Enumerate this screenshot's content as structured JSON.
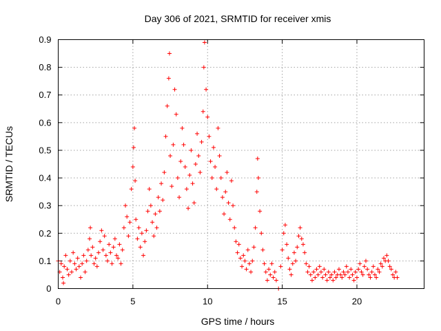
{
  "chart_data": {
    "type": "scatter",
    "title": "Day 306 of 2021, SRMTID for receiver xmis",
    "xlabel": "GPS time / hours",
    "ylabel": "SRMTID / TECUs",
    "xlim": [
      0,
      24.5
    ],
    "ylim": [
      0,
      0.9
    ],
    "xticks": [
      0,
      5,
      10,
      15,
      20
    ],
    "xtick_labels": [
      "0",
      "5",
      "10",
      "15",
      "20"
    ],
    "yticks": [
      0,
      0.1,
      0.2,
      0.3,
      0.4,
      0.5,
      0.6,
      0.7,
      0.8,
      0.9
    ],
    "ytick_labels": [
      "0",
      "0.1",
      "0.2",
      "0.3",
      "0.4",
      "0.5",
      "0.6",
      "0.7",
      "0.8",
      "0.9"
    ],
    "grid": true,
    "marker": "plus",
    "color": "#ff0000",
    "series": [
      {
        "name": "SRMTID",
        "points": [
          [
            0.0,
            0.1
          ],
          [
            0.1,
            0.06
          ],
          [
            0.2,
            0.09
          ],
          [
            0.3,
            0.04
          ],
          [
            0.35,
            0.02
          ],
          [
            0.4,
            0.08
          ],
          [
            0.5,
            0.12
          ],
          [
            0.6,
            0.07
          ],
          [
            0.7,
            0.05
          ],
          [
            0.8,
            0.1
          ],
          [
            0.9,
            0.06
          ],
          [
            1.0,
            0.13
          ],
          [
            1.1,
            0.09
          ],
          [
            1.2,
            0.07
          ],
          [
            1.3,
            0.11
          ],
          [
            1.4,
            0.08
          ],
          [
            1.5,
            0.04
          ],
          [
            1.6,
            0.09
          ],
          [
            1.7,
            0.12
          ],
          [
            1.8,
            0.06
          ],
          [
            1.9,
            0.1
          ],
          [
            2.0,
            0.14
          ],
          [
            2.1,
            0.18
          ],
          [
            2.15,
            0.22
          ],
          [
            2.2,
            0.12
          ],
          [
            2.3,
            0.15
          ],
          [
            2.4,
            0.09
          ],
          [
            2.5,
            0.11
          ],
          [
            2.6,
            0.08
          ],
          [
            2.7,
            0.13
          ],
          [
            2.8,
            0.17
          ],
          [
            2.9,
            0.21
          ],
          [
            3.0,
            0.14
          ],
          [
            3.1,
            0.19
          ],
          [
            3.2,
            0.12
          ],
          [
            3.3,
            0.1
          ],
          [
            3.4,
            0.16
          ],
          [
            3.5,
            0.13
          ],
          [
            3.6,
            0.09
          ],
          [
            3.7,
            0.15
          ],
          [
            3.8,
            0.18
          ],
          [
            3.9,
            0.12
          ],
          [
            4.0,
            0.11
          ],
          [
            4.1,
            0.16
          ],
          [
            4.2,
            0.09
          ],
          [
            4.3,
            0.14
          ],
          [
            4.4,
            0.22
          ],
          [
            4.5,
            0.3
          ],
          [
            4.6,
            0.26
          ],
          [
            4.7,
            0.19
          ],
          [
            4.8,
            0.24
          ],
          [
            4.9,
            0.36
          ],
          [
            5.0,
            0.44
          ],
          [
            5.05,
            0.51
          ],
          [
            5.1,
            0.58
          ],
          [
            5.15,
            0.39
          ],
          [
            5.2,
            0.25
          ],
          [
            5.3,
            0.18
          ],
          [
            5.4,
            0.22
          ],
          [
            5.5,
            0.15
          ],
          [
            5.6,
            0.2
          ],
          [
            5.7,
            0.12
          ],
          [
            5.8,
            0.17
          ],
          [
            5.9,
            0.21
          ],
          [
            6.0,
            0.28
          ],
          [
            6.1,
            0.36
          ],
          [
            6.2,
            0.3
          ],
          [
            6.3,
            0.24
          ],
          [
            6.4,
            0.19
          ],
          [
            6.5,
            0.27
          ],
          [
            6.6,
            0.22
          ],
          [
            6.7,
            0.33
          ],
          [
            6.8,
            0.28
          ],
          [
            6.9,
            0.38
          ],
          [
            7.0,
            0.32
          ],
          [
            7.1,
            0.42
          ],
          [
            7.2,
            0.55
          ],
          [
            7.3,
            0.66
          ],
          [
            7.4,
            0.76
          ],
          [
            7.45,
            0.85
          ],
          [
            7.5,
            0.48
          ],
          [
            7.6,
            0.37
          ],
          [
            7.7,
            0.52
          ],
          [
            7.8,
            0.72
          ],
          [
            7.9,
            0.63
          ],
          [
            8.0,
            0.4
          ],
          [
            8.1,
            0.33
          ],
          [
            8.2,
            0.46
          ],
          [
            8.3,
            0.58
          ],
          [
            8.4,
            0.52
          ],
          [
            8.5,
            0.44
          ],
          [
            8.6,
            0.36
          ],
          [
            8.7,
            0.29
          ],
          [
            8.8,
            0.41
          ],
          [
            8.9,
            0.5
          ],
          [
            9.0,
            0.38
          ],
          [
            9.1,
            0.31
          ],
          [
            9.2,
            0.45
          ],
          [
            9.3,
            0.56
          ],
          [
            9.4,
            0.48
          ],
          [
            9.5,
            0.42
          ],
          [
            9.6,
            0.53
          ],
          [
            9.7,
            0.64
          ],
          [
            9.75,
            0.8
          ],
          [
            9.8,
            0.89
          ],
          [
            9.9,
            0.72
          ],
          [
            10.0,
            0.62
          ],
          [
            10.1,
            0.55
          ],
          [
            10.2,
            0.46
          ],
          [
            10.3,
            0.4
          ],
          [
            10.4,
            0.51
          ],
          [
            10.5,
            0.44
          ],
          [
            10.6,
            0.36
          ],
          [
            10.7,
            0.58
          ],
          [
            10.8,
            0.48
          ],
          [
            10.9,
            0.4
          ],
          [
            11.0,
            0.33
          ],
          [
            11.1,
            0.27
          ],
          [
            11.2,
            0.35
          ],
          [
            11.3,
            0.42
          ],
          [
            11.4,
            0.31
          ],
          [
            11.5,
            0.25
          ],
          [
            11.6,
            0.39
          ],
          [
            11.7,
            0.3
          ],
          [
            11.8,
            0.22
          ],
          [
            11.9,
            0.17
          ],
          [
            12.0,
            0.13
          ],
          [
            12.1,
            0.16
          ],
          [
            12.2,
            0.11
          ],
          [
            12.3,
            0.08
          ],
          [
            12.4,
            0.12
          ],
          [
            12.5,
            0.1
          ],
          [
            12.6,
            0.07
          ],
          [
            12.7,
            0.14
          ],
          [
            12.8,
            0.09
          ],
          [
            12.9,
            0.06
          ],
          [
            13.0,
            0.1
          ],
          [
            13.1,
            0.15
          ],
          [
            13.2,
            0.22
          ],
          [
            13.3,
            0.35
          ],
          [
            13.35,
            0.47
          ],
          [
            13.4,
            0.4
          ],
          [
            13.5,
            0.28
          ],
          [
            13.6,
            0.2
          ],
          [
            13.7,
            0.14
          ],
          [
            13.8,
            0.09
          ],
          [
            13.9,
            0.06
          ],
          [
            14.0,
            0.03
          ],
          [
            14.1,
            0.07
          ],
          [
            14.2,
            0.05
          ],
          [
            14.3,
            0.09
          ],
          [
            14.4,
            0.04
          ],
          [
            14.5,
            0.06
          ],
          [
            14.6,
            0.03
          ],
          [
            14.75,
            0.0
          ],
          [
            14.9,
            0.08
          ],
          [
            15.0,
            0.14
          ],
          [
            15.1,
            0.2
          ],
          [
            15.2,
            0.23
          ],
          [
            15.3,
            0.16
          ],
          [
            15.4,
            0.11
          ],
          [
            15.5,
            0.07
          ],
          [
            15.6,
            0.05
          ],
          [
            15.7,
            0.09
          ],
          [
            15.8,
            0.13
          ],
          [
            15.9,
            0.1
          ],
          [
            16.0,
            0.15
          ],
          [
            16.1,
            0.19
          ],
          [
            16.2,
            0.22
          ],
          [
            16.3,
            0.18
          ],
          [
            16.4,
            0.16
          ],
          [
            16.5,
            0.13
          ],
          [
            16.6,
            0.09
          ],
          [
            16.7,
            0.06
          ],
          [
            16.8,
            0.08
          ],
          [
            16.9,
            0.05
          ],
          [
            17.0,
            0.03
          ],
          [
            17.1,
            0.06
          ],
          [
            17.2,
            0.04
          ],
          [
            17.3,
            0.07
          ],
          [
            17.4,
            0.05
          ],
          [
            17.5,
            0.08
          ],
          [
            17.6,
            0.06
          ],
          [
            17.7,
            0.04
          ],
          [
            17.8,
            0.07
          ],
          [
            17.9,
            0.05
          ],
          [
            18.0,
            0.03
          ],
          [
            18.1,
            0.06
          ],
          [
            18.2,
            0.04
          ],
          [
            18.3,
            0.05
          ],
          [
            18.4,
            0.03
          ],
          [
            18.5,
            0.06
          ],
          [
            18.6,
            0.04
          ],
          [
            18.7,
            0.05
          ],
          [
            18.8,
            0.07
          ],
          [
            18.9,
            0.05
          ],
          [
            19.0,
            0.04
          ],
          [
            19.1,
            0.06
          ],
          [
            19.2,
            0.05
          ],
          [
            19.3,
            0.08
          ],
          [
            19.4,
            0.06
          ],
          [
            19.5,
            0.04
          ],
          [
            19.6,
            0.07
          ],
          [
            19.7,
            0.05
          ],
          [
            19.8,
            0.03
          ],
          [
            19.9,
            0.06
          ],
          [
            20.0,
            0.04
          ],
          [
            20.1,
            0.07
          ],
          [
            20.2,
            0.09
          ],
          [
            20.3,
            0.06
          ],
          [
            20.4,
            0.05
          ],
          [
            20.5,
            0.08
          ],
          [
            20.6,
            0.1
          ],
          [
            20.7,
            0.07
          ],
          [
            20.8,
            0.05
          ],
          [
            20.9,
            0.04
          ],
          [
            21.0,
            0.06
          ],
          [
            21.1,
            0.08
          ],
          [
            21.2,
            0.05
          ],
          [
            21.3,
            0.04
          ],
          [
            21.4,
            0.07
          ],
          [
            21.5,
            0.06
          ],
          [
            21.6,
            0.09
          ],
          [
            21.7,
            0.08
          ],
          [
            21.8,
            0.11
          ],
          [
            21.9,
            0.1
          ],
          [
            22.0,
            0.12
          ],
          [
            22.1,
            0.1
          ],
          [
            22.2,
            0.08
          ],
          [
            22.3,
            0.07
          ],
          [
            22.4,
            0.05
          ],
          [
            22.5,
            0.04
          ],
          [
            22.6,
            0.06
          ],
          [
            22.7,
            0.04
          ]
        ]
      }
    ]
  }
}
